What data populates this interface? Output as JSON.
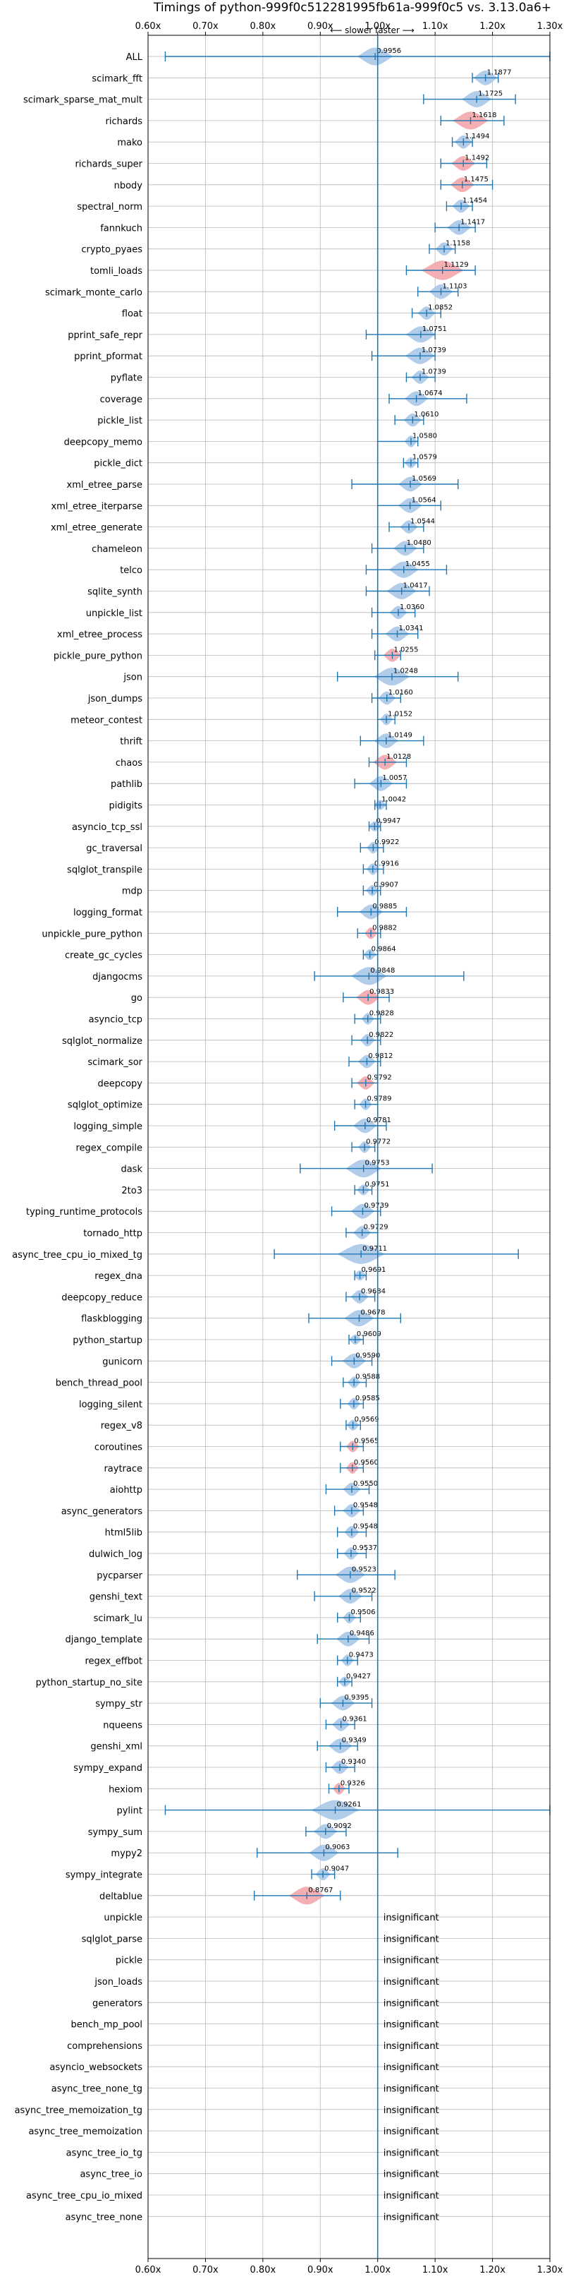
{
  "chart_data": {
    "type": "violin",
    "title": "Timings of python-999f0c512281995fb61a-999f0c5 vs. 3.13.0a6+",
    "subtitle": "⟵ slower    faster ⟶",
    "xlim": [
      0.6,
      1.3
    ],
    "xticks": [
      "0.60x",
      "0.70x",
      "0.80x",
      "0.90x",
      "1.00x",
      "1.10x",
      "1.20x",
      "1.30x"
    ],
    "xtick_values": [
      0.6,
      0.7,
      0.8,
      0.9,
      1.0,
      1.1,
      1.2,
      1.3
    ],
    "grid": true,
    "colors": {
      "faster": "#a8c8e8",
      "slower": "#f4a6aa",
      "median_line": "#1f77b4",
      "reference_line": "#1f77b4"
    },
    "benchmarks": [
      {
        "name": "ALL",
        "value": 0.9956,
        "lo": 0.63,
        "hi": 1.3,
        "color": "faster",
        "spread": 0.06
      },
      {
        "name": "scimark_fft",
        "value": 1.1877,
        "lo": 1.165,
        "hi": 1.21,
        "color": "faster",
        "spread": 0.04
      },
      {
        "name": "scimark_sparse_mat_mult",
        "value": 1.1725,
        "lo": 1.08,
        "hi": 1.24,
        "color": "faster",
        "spread": 0.05
      },
      {
        "name": "richards",
        "value": 1.1618,
        "lo": 1.11,
        "hi": 1.22,
        "color": "slower",
        "spread": 0.06
      },
      {
        "name": "mako",
        "value": 1.1494,
        "lo": 1.13,
        "hi": 1.165,
        "color": "faster",
        "spread": 0.03
      },
      {
        "name": "richards_super",
        "value": 1.1492,
        "lo": 1.11,
        "hi": 1.19,
        "color": "slower",
        "spread": 0.04
      },
      {
        "name": "nbody",
        "value": 1.1475,
        "lo": 1.11,
        "hi": 1.2,
        "color": "slower",
        "spread": 0.04
      },
      {
        "name": "spectral_norm",
        "value": 1.1454,
        "lo": 1.12,
        "hi": 1.165,
        "color": "faster",
        "spread": 0.03
      },
      {
        "name": "fannkuch",
        "value": 1.1417,
        "lo": 1.1,
        "hi": 1.17,
        "color": "faster",
        "spread": 0.04
      },
      {
        "name": "crypto_pyaes",
        "value": 1.1158,
        "lo": 1.09,
        "hi": 1.135,
        "color": "faster",
        "spread": 0.03
      },
      {
        "name": "tomli_loads",
        "value": 1.1129,
        "lo": 1.05,
        "hi": 1.17,
        "color": "slower",
        "spread": 0.07
      },
      {
        "name": "scimark_monte_carlo",
        "value": 1.1103,
        "lo": 1.07,
        "hi": 1.14,
        "color": "faster",
        "spread": 0.04
      },
      {
        "name": "float",
        "value": 1.0852,
        "lo": 1.06,
        "hi": 1.11,
        "color": "faster",
        "spread": 0.03
      },
      {
        "name": "pprint_safe_repr",
        "value": 1.0751,
        "lo": 0.98,
        "hi": 1.1,
        "color": "faster",
        "spread": 0.05
      },
      {
        "name": "pprint_pformat",
        "value": 1.0739,
        "lo": 0.99,
        "hi": 1.1,
        "color": "faster",
        "spread": 0.05
      },
      {
        "name": "pyflate",
        "value": 1.0739,
        "lo": 1.05,
        "hi": 1.1,
        "color": "faster",
        "spread": 0.03
      },
      {
        "name": "coverage",
        "value": 1.0674,
        "lo": 1.02,
        "hi": 1.155,
        "color": "faster",
        "spread": 0.04
      },
      {
        "name": "pickle_list",
        "value": 1.061,
        "lo": 1.03,
        "hi": 1.08,
        "color": "faster",
        "spread": 0.03
      },
      {
        "name": "deepcopy_memo",
        "value": 1.058,
        "lo": 1.0,
        "hi": 1.07,
        "color": "faster",
        "spread": 0.02
      },
      {
        "name": "pickle_dict",
        "value": 1.0579,
        "lo": 1.045,
        "hi": 1.07,
        "color": "faster",
        "spread": 0.015
      },
      {
        "name": "xml_etree_parse",
        "value": 1.0569,
        "lo": 0.955,
        "hi": 1.14,
        "color": "faster",
        "spread": 0.04
      },
      {
        "name": "xml_etree_iterparse",
        "value": 1.0564,
        "lo": 1.0,
        "hi": 1.11,
        "color": "faster",
        "spread": 0.04
      },
      {
        "name": "xml_etree_generate",
        "value": 1.0544,
        "lo": 1.02,
        "hi": 1.08,
        "color": "faster",
        "spread": 0.03
      },
      {
        "name": "chameleon",
        "value": 1.048,
        "lo": 0.99,
        "hi": 1.08,
        "color": "faster",
        "spread": 0.04
      },
      {
        "name": "telco",
        "value": 1.0455,
        "lo": 0.98,
        "hi": 1.12,
        "color": "faster",
        "spread": 0.05
      },
      {
        "name": "sqlite_synth",
        "value": 1.0417,
        "lo": 0.98,
        "hi": 1.09,
        "color": "faster",
        "spread": 0.05
      },
      {
        "name": "unpickle_list",
        "value": 1.036,
        "lo": 0.99,
        "hi": 1.065,
        "color": "faster",
        "spread": 0.03
      },
      {
        "name": "xml_etree_process",
        "value": 1.0341,
        "lo": 0.99,
        "hi": 1.07,
        "color": "faster",
        "spread": 0.04
      },
      {
        "name": "pickle_pure_python",
        "value": 1.0255,
        "lo": 0.995,
        "hi": 1.04,
        "color": "slower",
        "spread": 0.03
      },
      {
        "name": "json",
        "value": 1.0248,
        "lo": 0.93,
        "hi": 1.14,
        "color": "faster",
        "spread": 0.06
      },
      {
        "name": "json_dumps",
        "value": 1.016,
        "lo": 0.99,
        "hi": 1.04,
        "color": "faster",
        "spread": 0.03
      },
      {
        "name": "meteor_contest",
        "value": 1.0152,
        "lo": 1.0,
        "hi": 1.03,
        "color": "faster",
        "spread": 0.02
      },
      {
        "name": "thrift",
        "value": 1.0149,
        "lo": 0.97,
        "hi": 1.08,
        "color": "faster",
        "spread": 0.04
      },
      {
        "name": "chaos",
        "value": 1.0128,
        "lo": 0.985,
        "hi": 1.05,
        "color": "slower",
        "spread": 0.04
      },
      {
        "name": "pathlib",
        "value": 1.0057,
        "lo": 0.96,
        "hi": 1.05,
        "color": "faster",
        "spread": 0.04
      },
      {
        "name": "pidigits",
        "value": 1.0042,
        "lo": 0.995,
        "hi": 1.015,
        "color": "faster",
        "spread": 0.01
      },
      {
        "name": "asyncio_tcp_ssl",
        "value": 0.9947,
        "lo": 0.985,
        "hi": 1.005,
        "color": "faster",
        "spread": 0.01
      },
      {
        "name": "gc_traversal",
        "value": 0.9922,
        "lo": 0.97,
        "hi": 1.01,
        "color": "faster",
        "spread": 0.02
      },
      {
        "name": "sqlglot_transpile",
        "value": 0.9916,
        "lo": 0.975,
        "hi": 1.01,
        "color": "faster",
        "spread": 0.02
      },
      {
        "name": "mdp",
        "value": 0.9907,
        "lo": 0.975,
        "hi": 1.005,
        "color": "faster",
        "spread": 0.015
      },
      {
        "name": "logging_format",
        "value": 0.9885,
        "lo": 0.93,
        "hi": 1.05,
        "color": "faster",
        "spread": 0.04
      },
      {
        "name": "unpickle_pure_python",
        "value": 0.9882,
        "lo": 0.965,
        "hi": 1.005,
        "color": "slower",
        "spread": 0.02
      },
      {
        "name": "create_gc_cycles",
        "value": 0.9864,
        "lo": 0.975,
        "hi": 1.0,
        "color": "faster",
        "spread": 0.015
      },
      {
        "name": "djangocms",
        "value": 0.9848,
        "lo": 0.89,
        "hi": 1.15,
        "color": "faster",
        "spread": 0.06
      },
      {
        "name": "go",
        "value": 0.9833,
        "lo": 0.94,
        "hi": 1.02,
        "color": "slower",
        "spread": 0.04
      },
      {
        "name": "asyncio_tcp",
        "value": 0.9828,
        "lo": 0.96,
        "hi": 1.005,
        "color": "faster",
        "spread": 0.02
      },
      {
        "name": "sqlglot_normalize",
        "value": 0.9822,
        "lo": 0.955,
        "hi": 1.005,
        "color": "faster",
        "spread": 0.025
      },
      {
        "name": "scimark_sor",
        "value": 0.9812,
        "lo": 0.95,
        "hi": 1.005,
        "color": "faster",
        "spread": 0.03
      },
      {
        "name": "deepcopy",
        "value": 0.9792,
        "lo": 0.955,
        "hi": 1.0,
        "color": "slower",
        "spread": 0.03
      },
      {
        "name": "sqlglot_optimize",
        "value": 0.9789,
        "lo": 0.96,
        "hi": 1.0,
        "color": "faster",
        "spread": 0.02
      },
      {
        "name": "logging_simple",
        "value": 0.9781,
        "lo": 0.925,
        "hi": 1.015,
        "color": "faster",
        "spread": 0.04
      },
      {
        "name": "regex_compile",
        "value": 0.9772,
        "lo": 0.955,
        "hi": 0.995,
        "color": "faster",
        "spread": 0.02
      },
      {
        "name": "dask",
        "value": 0.9753,
        "lo": 0.865,
        "hi": 1.095,
        "color": "faster",
        "spread": 0.06
      },
      {
        "name": "2to3",
        "value": 0.9751,
        "lo": 0.96,
        "hi": 0.99,
        "color": "faster",
        "spread": 0.015
      },
      {
        "name": "typing_runtime_protocols",
        "value": 0.9739,
        "lo": 0.92,
        "hi": 1.005,
        "color": "faster",
        "spread": 0.04
      },
      {
        "name": "tornado_http",
        "value": 0.9729,
        "lo": 0.945,
        "hi": 1.0,
        "color": "faster",
        "spread": 0.03
      },
      {
        "name": "async_tree_cpu_io_mixed_tg",
        "value": 0.9711,
        "lo": 0.82,
        "hi": 1.245,
        "color": "faster",
        "spread": 0.08
      },
      {
        "name": "regex_dna",
        "value": 0.9691,
        "lo": 0.96,
        "hi": 0.98,
        "color": "faster",
        "spread": 0.01
      },
      {
        "name": "deepcopy_reduce",
        "value": 0.9684,
        "lo": 0.945,
        "hi": 0.995,
        "color": "faster",
        "spread": 0.03
      },
      {
        "name": "flaskblogging",
        "value": 0.9678,
        "lo": 0.88,
        "hi": 1.04,
        "color": "faster",
        "spread": 0.05
      },
      {
        "name": "python_startup",
        "value": 0.9609,
        "lo": 0.95,
        "hi": 0.975,
        "color": "faster",
        "spread": 0.01
      },
      {
        "name": "gunicorn",
        "value": 0.959,
        "lo": 0.92,
        "hi": 0.99,
        "color": "faster",
        "spread": 0.04
      },
      {
        "name": "bench_thread_pool",
        "value": 0.9588,
        "lo": 0.94,
        "hi": 0.98,
        "color": "faster",
        "spread": 0.02
      },
      {
        "name": "logging_silent",
        "value": 0.9585,
        "lo": 0.935,
        "hi": 0.975,
        "color": "faster",
        "spread": 0.02
      },
      {
        "name": "regex_v8",
        "value": 0.9569,
        "lo": 0.945,
        "hi": 0.97,
        "color": "faster",
        "spread": 0.015
      },
      {
        "name": "coroutines",
        "value": 0.9565,
        "lo": 0.935,
        "hi": 0.975,
        "color": "slower",
        "spread": 0.02
      },
      {
        "name": "raytrace",
        "value": 0.956,
        "lo": 0.935,
        "hi": 0.975,
        "color": "slower",
        "spread": 0.02
      },
      {
        "name": "aiohttp",
        "value": 0.955,
        "lo": 0.91,
        "hi": 0.985,
        "color": "faster",
        "spread": 0.03
      },
      {
        "name": "async_generators",
        "value": 0.9548,
        "lo": 0.925,
        "hi": 0.975,
        "color": "faster",
        "spread": 0.03
      },
      {
        "name": "html5lib",
        "value": 0.9548,
        "lo": 0.93,
        "hi": 0.98,
        "color": "faster",
        "spread": 0.025
      },
      {
        "name": "dulwich_log",
        "value": 0.9537,
        "lo": 0.93,
        "hi": 0.98,
        "color": "faster",
        "spread": 0.025
      },
      {
        "name": "pycparser",
        "value": 0.9523,
        "lo": 0.86,
        "hi": 1.03,
        "color": "faster",
        "spread": 0.05
      },
      {
        "name": "genshi_text",
        "value": 0.9522,
        "lo": 0.89,
        "hi": 0.99,
        "color": "faster",
        "spread": 0.04
      },
      {
        "name": "scimark_lu",
        "value": 0.9506,
        "lo": 0.93,
        "hi": 0.97,
        "color": "faster",
        "spread": 0.02
      },
      {
        "name": "django_template",
        "value": 0.9486,
        "lo": 0.895,
        "hi": 0.985,
        "color": "faster",
        "spread": 0.04
      },
      {
        "name": "regex_effbot",
        "value": 0.9473,
        "lo": 0.93,
        "hi": 0.965,
        "color": "faster",
        "spread": 0.02
      },
      {
        "name": "python_startup_no_site",
        "value": 0.9427,
        "lo": 0.93,
        "hi": 0.955,
        "color": "faster",
        "spread": 0.012
      },
      {
        "name": "sympy_str",
        "value": 0.9395,
        "lo": 0.9,
        "hi": 0.99,
        "color": "faster",
        "spread": 0.04
      },
      {
        "name": "nqueens",
        "value": 0.9361,
        "lo": 0.91,
        "hi": 0.96,
        "color": "faster",
        "spread": 0.03
      },
      {
        "name": "genshi_xml",
        "value": 0.9349,
        "lo": 0.895,
        "hi": 0.965,
        "color": "faster",
        "spread": 0.04
      },
      {
        "name": "sympy_expand",
        "value": 0.934,
        "lo": 0.91,
        "hi": 0.96,
        "color": "faster",
        "spread": 0.03
      },
      {
        "name": "hexiom",
        "value": 0.9326,
        "lo": 0.915,
        "hi": 0.95,
        "color": "slower",
        "spread": 0.02
      },
      {
        "name": "pylint",
        "value": 0.9261,
        "lo": 0.63,
        "hi": 1.3,
        "color": "faster",
        "spread": 0.08
      },
      {
        "name": "sympy_sum",
        "value": 0.9092,
        "lo": 0.875,
        "hi": 0.945,
        "color": "faster",
        "spread": 0.04
      },
      {
        "name": "mypy2",
        "value": 0.9063,
        "lo": 0.79,
        "hi": 1.035,
        "color": "faster",
        "spread": 0.05
      },
      {
        "name": "sympy_integrate",
        "value": 0.9047,
        "lo": 0.885,
        "hi": 0.925,
        "color": "faster",
        "spread": 0.025
      },
      {
        "name": "deltablue",
        "value": 0.8767,
        "lo": 0.785,
        "hi": 0.935,
        "color": "slower",
        "spread": 0.06
      }
    ],
    "insignificant_label": "insignificant",
    "insignificant": [
      "unpickle",
      "sqlglot_parse",
      "pickle",
      "json_loads",
      "generators",
      "bench_mp_pool",
      "comprehensions",
      "asyncio_websockets",
      "async_tree_none_tg",
      "async_tree_memoization_tg",
      "async_tree_memoization",
      "async_tree_io_tg",
      "async_tree_io",
      "async_tree_cpu_io_mixed",
      "async_tree_none"
    ]
  }
}
